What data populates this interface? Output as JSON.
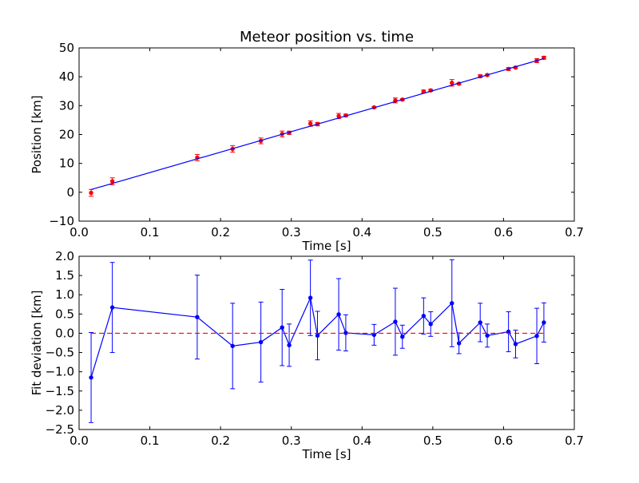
{
  "colors": {
    "data_points": "#ff0000",
    "fit_line": "#0000ff",
    "deviation": "#0000ff",
    "zero_line": "#ff0000",
    "axes": "#000000",
    "background": "#ffffff"
  },
  "chart_data": [
    {
      "type": "scatter",
      "title": "Meteor position vs. time",
      "xlabel": "Time [s]",
      "ylabel": "Position [km]",
      "xlim": [
        0.0,
        0.7
      ],
      "ylim": [
        -10,
        50
      ],
      "xticks": [
        "0.0",
        "0.1",
        "0.2",
        "0.3",
        "0.4",
        "0.5",
        "0.6",
        "0.7"
      ],
      "yticks": [
        "−10",
        "0",
        "10",
        "20",
        "30",
        "40",
        "50"
      ],
      "grid": false,
      "series": [
        {
          "kind": "points-with-errorbars",
          "color": "#ff0000",
          "x": [
            0.017,
            0.047,
            0.167,
            0.217,
            0.257,
            0.287,
            0.297,
            0.327,
            0.337,
            0.367,
            0.377,
            0.417,
            0.447,
            0.457,
            0.487,
            0.497,
            0.527,
            0.537,
            0.567,
            0.577,
            0.607,
            0.617,
            0.647,
            0.657
          ],
          "y": [
            -0.2,
            3.8,
            12.0,
            15.0,
            17.8,
            20.2,
            20.6,
            23.8,
            23.6,
            26.4,
            26.6,
            29.4,
            31.8,
            32.1,
            34.9,
            35.3,
            37.9,
            37.6,
            40.2,
            40.6,
            42.7,
            43.2,
            45.6,
            46.6
          ],
          "yerr": [
            1.2,
            1.2,
            1.1,
            1.1,
            1.0,
            1.0,
            0.55,
            0.95,
            0.6,
            0.9,
            0.45,
            0.3,
            0.85,
            0.3,
            0.5,
            0.35,
            1.15,
            0.3,
            0.5,
            0.3,
            0.5,
            0.35,
            0.7,
            0.5
          ]
        },
        {
          "kind": "fit-line",
          "color": "#0000ff",
          "x": [
            0.017,
            0.657
          ],
          "y": [
            0.93,
            46.3
          ]
        }
      ]
    },
    {
      "type": "line",
      "title": "",
      "xlabel": "Time [s]",
      "ylabel": "Fit deviation [km]",
      "xlim": [
        0.0,
        0.7
      ],
      "ylim": [
        -2.5,
        2.0
      ],
      "xticks": [
        "0.0",
        "0.1",
        "0.2",
        "0.3",
        "0.4",
        "0.5",
        "0.6",
        "0.7"
      ],
      "yticks": [
        "−2.5",
        "−2.0",
        "−1.5",
        "−1.0",
        "−0.5",
        "0.0",
        "0.5",
        "1.0",
        "1.5",
        "2.0"
      ],
      "grid": false,
      "series": [
        {
          "kind": "line-with-errorbars",
          "color": "#0000ff",
          "x": [
            0.017,
            0.047,
            0.167,
            0.217,
            0.257,
            0.287,
            0.297,
            0.327,
            0.337,
            0.367,
            0.377,
            0.417,
            0.447,
            0.457,
            0.487,
            0.497,
            0.527,
            0.537,
            0.567,
            0.577,
            0.607,
            0.617,
            0.647,
            0.657
          ],
          "y": [
            -1.15,
            0.67,
            0.42,
            -0.33,
            -0.23,
            0.15,
            -0.31,
            0.92,
            -0.06,
            0.49,
            0.01,
            -0.04,
            0.3,
            -0.09,
            0.45,
            0.24,
            0.78,
            -0.26,
            0.28,
            -0.06,
            0.04,
            -0.28,
            -0.07,
            0.28
          ],
          "yerr": [
            1.17,
            1.17,
            1.09,
            1.11,
            1.04,
            0.99,
            0.55,
            0.98,
            0.63,
            0.93,
            0.47,
            0.27,
            0.87,
            0.3,
            0.47,
            0.32,
            1.13,
            0.27,
            0.5,
            0.3,
            0.52,
            0.36,
            0.72,
            0.51
          ]
        },
        {
          "kind": "reference-line",
          "style": "dashed",
          "color": "#ff0000",
          "x": [
            0.017,
            0.657
          ],
          "y": [
            0.0,
            0.0
          ]
        }
      ]
    }
  ]
}
